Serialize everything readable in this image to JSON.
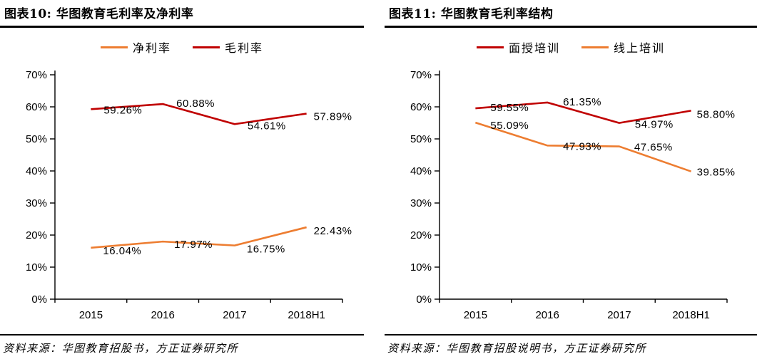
{
  "colors": {
    "accent_orange": "#ED7D31",
    "accent_red": "#C00000",
    "axis_black": "#000000"
  },
  "chart_data": [
    {
      "type": "line",
      "title": "图表10: 华图教育毛利率及净利率",
      "x": [
        "2015",
        "2016",
        "2017",
        "2018H1"
      ],
      "series": [
        {
          "name": "净利率",
          "color": "#ED7D31",
          "values": [
            16.04,
            17.97,
            16.75,
            22.43
          ],
          "label_offsets": [
            [
              17,
              9
            ],
            [
              16,
              9
            ],
            [
              17,
              10
            ],
            [
              10,
              10
            ]
          ]
        },
        {
          "name": "毛利率",
          "color": "#C00000",
          "values": [
            59.26,
            60.88,
            54.61,
            57.89
          ],
          "label_offsets": [
            [
              18,
              6
            ],
            [
              19,
              4
            ],
            [
              18,
              7
            ],
            [
              10,
              9
            ]
          ]
        }
      ],
      "ylim": [
        0,
        70
      ],
      "ytick_step": 10,
      "ytick_suffix": "%",
      "grid": false,
      "legend_position": "top",
      "source": "资料来源：华图教育招股书，方正证券研究所"
    },
    {
      "type": "line",
      "title": "图表11: 华图教育毛利率结构",
      "x": [
        "2015",
        "2016",
        "2017",
        "2018H1"
      ],
      "series": [
        {
          "name": "面授培训",
          "color": "#C00000",
          "values": [
            59.55,
            61.35,
            54.97,
            58.8
          ],
          "label_offsets": [
            [
              21,
              4
            ],
            [
              22,
              4
            ],
            [
              22,
              7
            ],
            [
              8,
              10
            ]
          ]
        },
        {
          "name": "线上培训",
          "color": "#ED7D31",
          "values": [
            55.09,
            47.93,
            47.65,
            39.85
          ],
          "label_offsets": [
            [
              21,
              9
            ],
            [
              22,
              6
            ],
            [
              21,
              6
            ],
            [
              8,
              6
            ]
          ]
        }
      ],
      "ylim": [
        0,
        70
      ],
      "ytick_step": 10,
      "ytick_suffix": "%",
      "grid": false,
      "legend_position": "top",
      "source": "资料来源：华图教育招股说明书，方正证券研究所"
    }
  ]
}
